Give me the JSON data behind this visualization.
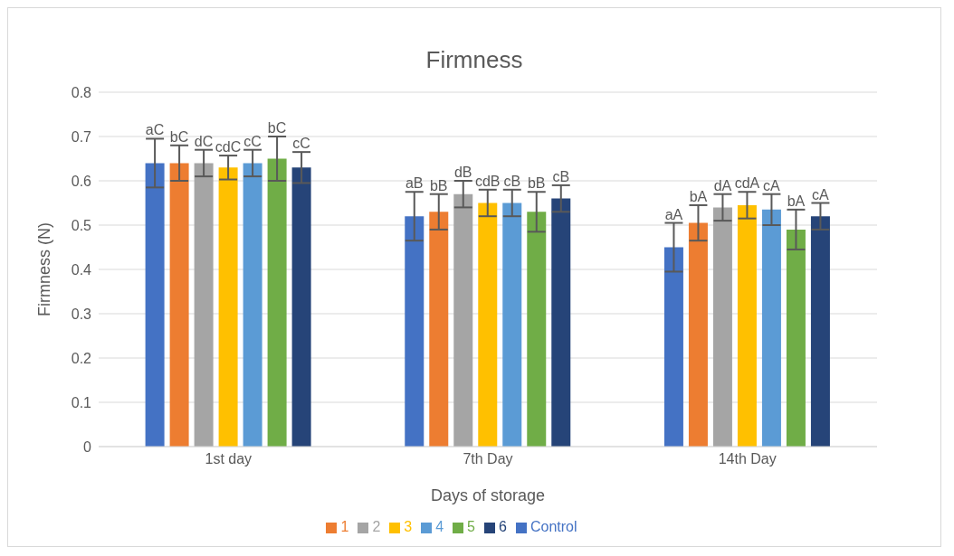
{
  "chart_data": {
    "type": "bar",
    "title": "Firmness",
    "xlabel": "Days of storage",
    "ylabel": "Firmness (N)",
    "categories": [
      "1st day",
      "7th Day",
      "14th Day"
    ],
    "series": [
      {
        "name": "Control",
        "color": "#4472c4",
        "values": [
          0.64,
          0.52,
          0.45
        ],
        "errors": [
          0.055,
          0.055,
          0.055
        ],
        "value_labels": [
          "aC",
          "aB",
          "aA"
        ]
      },
      {
        "name": "1",
        "color": "#ed7d31",
        "values": [
          0.64,
          0.53,
          0.505
        ],
        "errors": [
          0.04,
          0.04,
          0.04
        ],
        "value_labels": [
          "bC",
          "bB",
          "bA"
        ]
      },
      {
        "name": "2",
        "color": "#a5a5a5",
        "values": [
          0.64,
          0.57,
          0.54
        ],
        "errors": [
          0.03,
          0.03,
          0.03
        ],
        "value_labels": [
          "dC",
          "dB",
          "dA"
        ]
      },
      {
        "name": "3",
        "color": "#ffc000",
        "values": [
          0.63,
          0.55,
          0.545
        ],
        "errors": [
          0.027,
          0.03,
          0.03
        ],
        "value_labels": [
          "cdC",
          "cdB",
          "cdA"
        ]
      },
      {
        "name": "4",
        "color": "#5b9bd5",
        "values": [
          0.64,
          0.55,
          0.535
        ],
        "errors": [
          0.03,
          0.03,
          0.035
        ],
        "value_labels": [
          "cC",
          "cB",
          "cA"
        ]
      },
      {
        "name": "5",
        "color": "#70ad47",
        "values": [
          0.65,
          0.53,
          0.49
        ],
        "errors": [
          0.05,
          0.045,
          0.045
        ],
        "value_labels": [
          "bC",
          "bB",
          "bA"
        ]
      },
      {
        "name": "6",
        "color": "#264478",
        "values": [
          0.63,
          0.56,
          0.52
        ],
        "errors": [
          0.035,
          0.03,
          0.03
        ],
        "value_labels": [
          "cC",
          "cB",
          "cA"
        ]
      }
    ],
    "ylim": [
      0,
      0.8
    ],
    "yticks": [
      0,
      0.1,
      0.2,
      0.3,
      0.4,
      0.5,
      0.6,
      0.7,
      0.8
    ],
    "grid": "y",
    "legend": "bottom"
  }
}
